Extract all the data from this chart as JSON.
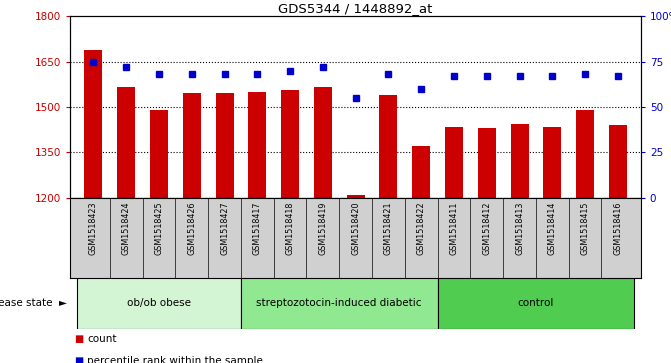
{
  "title": "GDS5344 / 1448892_at",
  "samples": [
    "GSM1518423",
    "GSM1518424",
    "GSM1518425",
    "GSM1518426",
    "GSM1518427",
    "GSM1518417",
    "GSM1518418",
    "GSM1518419",
    "GSM1518420",
    "GSM1518421",
    "GSM1518422",
    "GSM1518411",
    "GSM1518412",
    "GSM1518413",
    "GSM1518414",
    "GSM1518415",
    "GSM1518416"
  ],
  "counts": [
    1690,
    1565,
    1490,
    1545,
    1545,
    1550,
    1555,
    1565,
    1210,
    1540,
    1370,
    1435,
    1430,
    1445,
    1435,
    1490,
    1440
  ],
  "percentiles": [
    75,
    72,
    68,
    68,
    68,
    68,
    70,
    72,
    55,
    68,
    60,
    67,
    67,
    67,
    67,
    68,
    67
  ],
  "groups": [
    {
      "name": "ob/ob obese",
      "start": 0,
      "end": 5,
      "color": "#d4f5d4"
    },
    {
      "name": "streptozotocin-induced diabetic",
      "start": 5,
      "end": 11,
      "color": "#90e890"
    },
    {
      "name": "control",
      "start": 11,
      "end": 17,
      "color": "#50cc50"
    }
  ],
  "bar_color": "#cc0000",
  "dot_color": "#0000cc",
  "ylim_left": [
    1200,
    1800
  ],
  "ylim_right": [
    0,
    100
  ],
  "yticks_left": [
    1200,
    1350,
    1500,
    1650,
    1800
  ],
  "yticks_right": [
    0,
    25,
    50,
    75,
    100
  ],
  "sample_bg": "#d0d0d0",
  "plot_bg": "#ffffff",
  "legend_count_color": "#cc0000",
  "legend_dot_color": "#0000cc",
  "fig_width": 6.71,
  "fig_height": 3.63,
  "dpi": 100
}
